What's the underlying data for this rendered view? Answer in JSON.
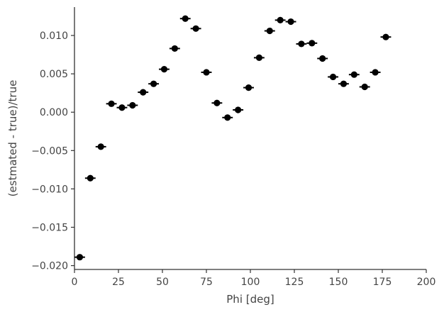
{
  "chart_data": {
    "type": "scatter",
    "title": "",
    "xlabel": "Phi [deg]",
    "ylabel": "(estmated - true)/true",
    "xlim": [
      0,
      200
    ],
    "ylim": [
      -0.0205,
      0.0137
    ],
    "xticks": [
      0,
      25,
      50,
      75,
      100,
      125,
      150,
      175,
      200
    ],
    "xtick_labels": [
      "0",
      "25",
      "50",
      "75",
      "100",
      "125",
      "150",
      "175",
      "200"
    ],
    "yticks": [
      -0.02,
      -0.015,
      -0.01,
      -0.005,
      0.0,
      0.005,
      0.01
    ],
    "ytick_labels": [
      "−0.020",
      "−0.015",
      "−0.010",
      "−0.005",
      "0.000",
      "0.005",
      "0.010"
    ],
    "grid": false,
    "marker_color": "#000000",
    "x_error": 3,
    "series": [
      {
        "points": [
          {
            "x": 3,
            "y": -0.0189
          },
          {
            "x": 9,
            "y": -0.0086
          },
          {
            "x": 15,
            "y": -0.0045
          },
          {
            "x": 21,
            "y": 0.0011
          },
          {
            "x": 27,
            "y": 0.0006
          },
          {
            "x": 33,
            "y": 0.0009
          },
          {
            "x": 39,
            "y": 0.0026
          },
          {
            "x": 45,
            "y": 0.0037
          },
          {
            "x": 51,
            "y": 0.0056
          },
          {
            "x": 57,
            "y": 0.0083
          },
          {
            "x": 63,
            "y": 0.0122
          },
          {
            "x": 69,
            "y": 0.0109
          },
          {
            "x": 75,
            "y": 0.0052
          },
          {
            "x": 81,
            "y": 0.0012
          },
          {
            "x": 87,
            "y": -0.0007
          },
          {
            "x": 93,
            "y": 0.0003
          },
          {
            "x": 99,
            "y": 0.0032
          },
          {
            "x": 105,
            "y": 0.0071
          },
          {
            "x": 111,
            "y": 0.0106
          },
          {
            "x": 117,
            "y": 0.012
          },
          {
            "x": 123,
            "y": 0.0118
          },
          {
            "x": 129,
            "y": 0.0089
          },
          {
            "x": 135,
            "y": 0.009
          },
          {
            "x": 141,
            "y": 0.007
          },
          {
            "x": 147,
            "y": 0.0046
          },
          {
            "x": 153,
            "y": 0.0037
          },
          {
            "x": 159,
            "y": 0.0049
          },
          {
            "x": 165,
            "y": 0.0033
          },
          {
            "x": 171,
            "y": 0.0052
          },
          {
            "x": 177,
            "y": 0.0098
          }
        ]
      }
    ]
  }
}
